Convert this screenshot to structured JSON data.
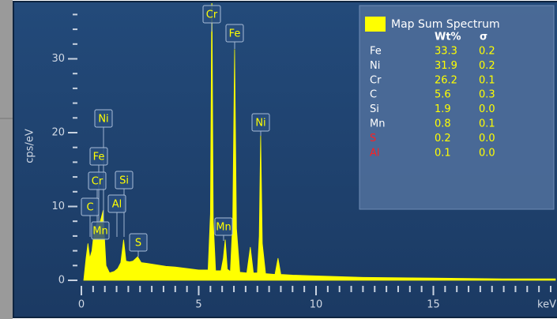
{
  "chart_data": {
    "type": "area",
    "color": "#ffff00",
    "y_label": "cps/eV",
    "x_label": "keV",
    "x": [
      0.1,
      0.2,
      0.28,
      0.36,
      0.45,
      0.52,
      0.6,
      0.68,
      0.76,
      0.85,
      0.93,
      0.98,
      1.05,
      1.2,
      1.4,
      1.55,
      1.68,
      1.8,
      1.9,
      2.05,
      2.2,
      2.4,
      2.55,
      2.8,
      3.2,
      3.6,
      4.0,
      4.5,
      5.0,
      5.4,
      5.5,
      5.56,
      5.62,
      5.72,
      5.95,
      6.05,
      6.13,
      6.22,
      6.35,
      6.45,
      6.53,
      6.61,
      6.75,
      7.05,
      7.2,
      7.33,
      7.5,
      7.58,
      7.64,
      7.71,
      7.85,
      8.25,
      8.38,
      8.5,
      9.0,
      10.0,
      12.0,
      15.0,
      18.0,
      20.2
    ],
    "values": [
      0,
      3,
      5,
      3,
      4,
      6,
      7,
      8,
      7.5,
      8.5,
      9.5,
      6,
      2,
      1,
      1.2,
      1.6,
      2.4,
      5.5,
      2.6,
      2.5,
      2.6,
      3.2,
      2.4,
      2.3,
      2.1,
      1.9,
      1.8,
      1.6,
      1.4,
      1.4,
      9,
      40,
      8,
      1.3,
      1.3,
      3,
      5.5,
      1.5,
      1.2,
      8,
      31.3,
      7,
      1.1,
      1,
      4.5,
      1,
      1,
      6,
      19.8,
      5,
      0.9,
      0.8,
      3,
      0.8,
      0.7,
      0.6,
      0.4,
      0.3,
      0.2,
      0.2
    ],
    "xlim": [
      0,
      20.2
    ],
    "ylim": [
      0,
      37.5
    ],
    "xticks": [
      0,
      5,
      10,
      15
    ],
    "yticks": [
      0,
      10,
      20,
      30
    ],
    "xminorticks": [
      0.5,
      1,
      1.5,
      2,
      2.5,
      3,
      3.5,
      4,
      4.5,
      5.5,
      6,
      6.5,
      7,
      7.5,
      8,
      8.5,
      9,
      9.5,
      10.5,
      11,
      11.5,
      12,
      12.5,
      13,
      13.5,
      14,
      14.5,
      15.5,
      16,
      16.5,
      17,
      17.5,
      18,
      18.5,
      19,
      19.5,
      20
    ],
    "yminorticks": [
      2,
      4,
      6,
      8,
      12,
      14,
      16,
      18,
      22,
      24,
      26,
      28,
      32,
      34,
      36
    ],
    "peak_labels": [
      "Cr",
      "Fe",
      "Ni",
      "Mn",
      "S",
      "Si",
      "Al",
      "Ni",
      "Fe",
      "Cr",
      "C",
      "Mn"
    ],
    "legend": {
      "title": "Map Sum Spectrum",
      "headers": [
        "Wt%",
        "σ"
      ],
      "rows": [
        {
          "element": "Fe",
          "wt": "33.3",
          "sigma": "0.2",
          "color": "#ffffff"
        },
        {
          "element": "Ni",
          "wt": "31.9",
          "sigma": "0.2",
          "color": "#ffffff"
        },
        {
          "element": "Cr",
          "wt": "26.2",
          "sigma": "0.1",
          "color": "#ffffff"
        },
        {
          "element": "C",
          "wt": "5.6",
          "sigma": "0.3",
          "color": "#ffffff"
        },
        {
          "element": "Si",
          "wt": "1.9",
          "sigma": "0.0",
          "color": "#ffffff"
        },
        {
          "element": "Mn",
          "wt": "0.8",
          "sigma": "0.1",
          "color": "#ffffff"
        },
        {
          "element": "S",
          "wt": "0.2",
          "sigma": "0.0",
          "color": "#ff2020"
        },
        {
          "element": "Al",
          "wt": "0.1",
          "sigma": "0.0",
          "color": "#ff2020"
        }
      ]
    }
  }
}
